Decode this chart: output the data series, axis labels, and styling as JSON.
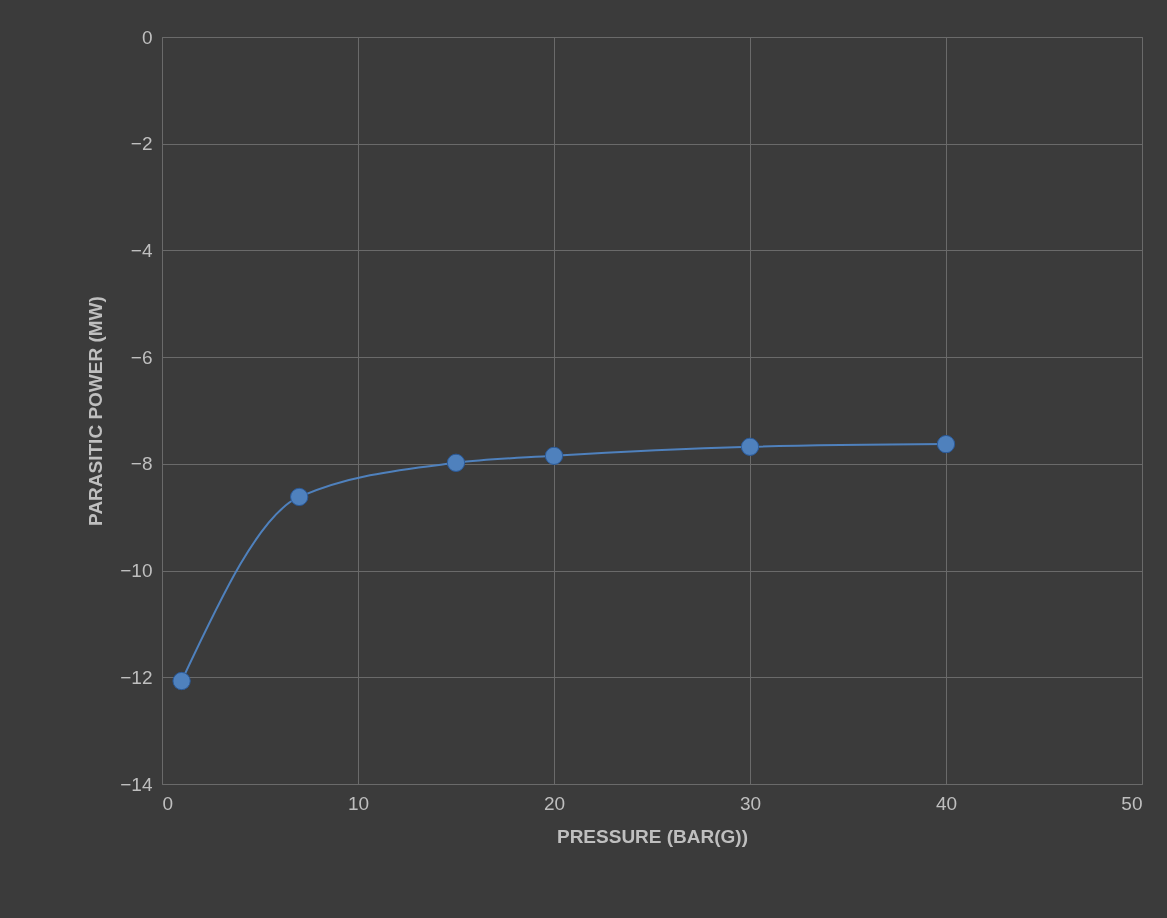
{
  "chart_data": {
    "type": "line",
    "xlabel": "PRESSURE (BAR(G))",
    "ylabel": "PARASITIC POWER (MW)",
    "x": [
      1,
      7,
      15,
      20,
      30,
      40
    ],
    "series": [
      {
        "color": "#4f81bd",
        "values": [
          -12.07,
          -8.62,
          -7.98,
          -7.85,
          -7.68,
          -7.63
        ]
      }
    ],
    "xlim": [
      0,
      50
    ],
    "ylim": [
      -14,
      0
    ],
    "xticks": [
      0,
      10,
      20,
      30,
      40,
      50
    ],
    "yticks": [
      -14,
      -12,
      -10,
      -8,
      -6,
      -4,
      -2,
      0
    ],
    "grid": true,
    "marker": "circle"
  }
}
